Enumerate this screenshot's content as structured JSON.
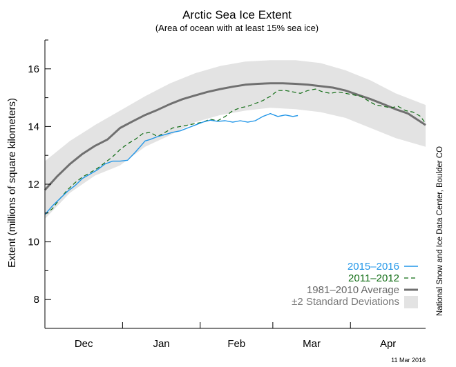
{
  "chart_data": {
    "type": "line",
    "title": "Arctic Sea Ice Extent",
    "subtitle": "(Area of ocean with at least 15% sea ice)",
    "ylabel": "Extent (millions of square kilometers)",
    "xlabel": "",
    "credit": "National Snow and Ice Data Center, Boulder CO",
    "date_stamp": "11 Mar 2016",
    "ylim": [
      7,
      17
    ],
    "y_ticks": [
      "8",
      "10",
      "12",
      "14",
      "16"
    ],
    "y_tick_values": [
      8,
      10,
      12,
      14,
      16
    ],
    "x_domain_days": [
      0,
      152
    ],
    "month_labels": [
      "Dec",
      "Jan",
      "Feb",
      "Mar",
      "Apr"
    ],
    "month_label_days": [
      15.5,
      46.5,
      76.5,
      106.5,
      137
    ],
    "month_boundary_days": [
      31,
      62,
      91,
      122
    ],
    "legend_position": "bottom-right",
    "colors": {
      "series_2015_2016": "#2196e8",
      "series_2011_2012": "#0e6b12",
      "average": "#707070",
      "std_band": "#e3e3e3",
      "axis": "#000000"
    },
    "legend": [
      {
        "label": "2015–2016",
        "style": "solid-blue"
      },
      {
        "label": "2011–2012",
        "style": "dashed-green"
      },
      {
        "label": "1981–2010 Average",
        "style": "thick-gray"
      },
      {
        "label": "±2 Standard Deviations",
        "style": "band"
      }
    ],
    "series": [
      {
        "name": "2015–2016",
        "x": [
          0,
          3,
          6,
          9,
          12,
          15,
          18,
          21,
          24,
          27,
          30,
          33,
          36,
          38,
          40,
          42,
          45,
          48,
          51,
          54,
          57,
          60,
          63,
          66,
          69,
          72,
          75,
          78,
          81,
          84,
          87,
          90,
          93,
          96,
          99,
          101
        ],
        "y": [
          10.95,
          11.25,
          11.5,
          11.75,
          11.95,
          12.2,
          12.35,
          12.5,
          12.7,
          12.8,
          12.8,
          12.83,
          13.1,
          13.3,
          13.5,
          13.55,
          13.65,
          13.72,
          13.8,
          13.85,
          13.95,
          14.05,
          14.15,
          14.22,
          14.18,
          14.2,
          14.15,
          14.2,
          14.15,
          14.2,
          14.35,
          14.45,
          14.35,
          14.4,
          14.35,
          14.38
        ]
      },
      {
        "name": "2011–2012",
        "x": [
          0,
          3,
          6,
          9,
          12,
          15,
          18,
          21,
          24,
          27,
          30,
          33,
          36,
          39,
          42,
          45,
          48,
          51,
          54,
          57,
          60,
          63,
          66,
          69,
          72,
          75,
          78,
          81,
          84,
          87,
          90,
          93,
          96,
          99,
          102,
          105,
          108,
          111,
          114,
          117,
          120,
          123,
          126,
          129,
          132,
          135,
          138,
          141,
          144,
          147,
          150,
          152
        ],
        "y": [
          10.95,
          11.15,
          11.5,
          11.8,
          12.05,
          12.25,
          12.4,
          12.55,
          12.75,
          12.95,
          13.2,
          13.4,
          13.55,
          13.75,
          13.8,
          13.65,
          13.8,
          13.95,
          14.0,
          14.05,
          14.1,
          14.15,
          14.25,
          14.2,
          14.35,
          14.55,
          14.65,
          14.7,
          14.8,
          14.9,
          15.05,
          15.25,
          15.25,
          15.2,
          15.15,
          15.25,
          15.3,
          15.2,
          15.15,
          15.2,
          15.15,
          15.1,
          15.05,
          14.9,
          14.75,
          14.7,
          14.65,
          14.7,
          14.55,
          14.5,
          14.35,
          14.1
        ]
      },
      {
        "name": "1981–2010 Average",
        "x": [
          0,
          5,
          10,
          15,
          20,
          25,
          30,
          35,
          40,
          45,
          50,
          55,
          60,
          65,
          70,
          75,
          80,
          85,
          90,
          95,
          100,
          105,
          110,
          115,
          120,
          125,
          130,
          135,
          140,
          145,
          152
        ],
        "y": [
          11.8,
          12.28,
          12.7,
          13.05,
          13.33,
          13.55,
          13.95,
          14.18,
          14.4,
          14.58,
          14.78,
          14.95,
          15.08,
          15.2,
          15.3,
          15.38,
          15.45,
          15.48,
          15.5,
          15.5,
          15.48,
          15.45,
          15.4,
          15.35,
          15.25,
          15.1,
          14.95,
          14.78,
          14.6,
          14.45,
          14.05
        ]
      }
    ],
    "std_band": {
      "name": "±2 Standard Deviations",
      "x": [
        0,
        10,
        20,
        30,
        40,
        50,
        60,
        70,
        80,
        90,
        100,
        110,
        120,
        130,
        140,
        152
      ],
      "upper": [
        12.8,
        13.5,
        14.05,
        14.55,
        15.05,
        15.5,
        15.85,
        16.1,
        16.25,
        16.3,
        16.3,
        16.2,
        15.95,
        15.6,
        15.15,
        14.75
      ],
      "lower": [
        10.8,
        11.7,
        12.3,
        12.65,
        13.3,
        13.7,
        14.15,
        14.4,
        14.55,
        14.65,
        14.6,
        14.5,
        14.3,
        13.95,
        13.6,
        13.3
      ]
    }
  }
}
